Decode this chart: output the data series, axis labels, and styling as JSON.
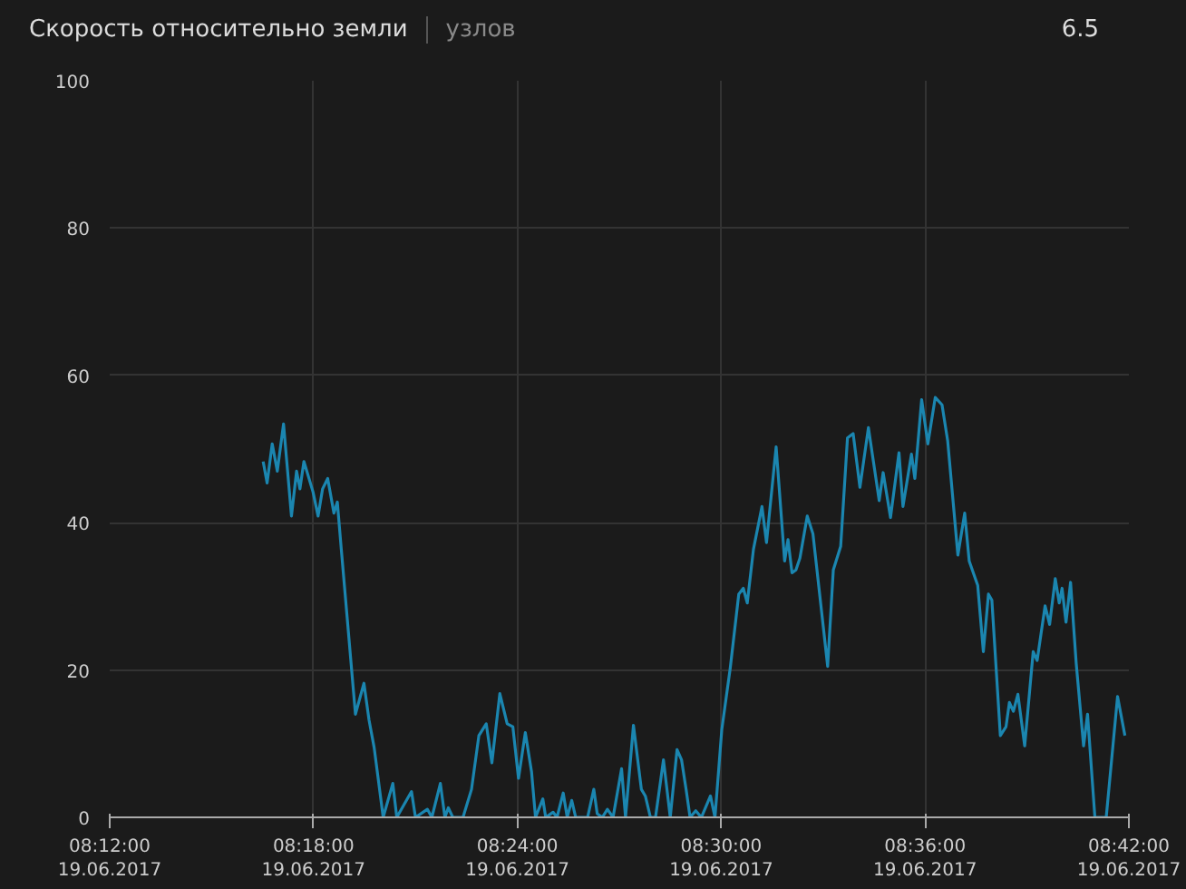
{
  "chart_data": {
    "type": "line",
    "title": "Скорость относительно земли",
    "subtitle": "узлов",
    "annotations": [
      "6.5"
    ],
    "color": "#1b86b0",
    "grid": true,
    "line_style": "solid",
    "marker": "none",
    "xlim": [
      "2017-06-19T08:12",
      "2017-06-19T08:42"
    ],
    "ylim": [
      0,
      100
    ],
    "yticks": [
      0,
      20,
      40,
      60,
      80,
      100
    ],
    "xticks": [
      {
        "value": "2017-06-19T08:12",
        "label": "08:12:00\n19.06.2017"
      },
      {
        "value": "2017-06-19T08:18",
        "label": "08:18:00\n19.06.2017"
      },
      {
        "value": "2017-06-19T08:24",
        "label": "08:24:00\n19.06.2017"
      },
      {
        "value": "2017-06-19T08:30",
        "label": "08:30:00\n19.06.2017"
      },
      {
        "value": "2017-06-19T08:36",
        "label": "08:36:00\n19.06.2017"
      },
      {
        "value": "2017-06-19T08:42",
        "label": "08:42:00\n19.06.2017"
      }
    ],
    "x": [
      "2017-06-19T08:16:31",
      "2017-06-19T08:16:38",
      "2017-06-19T08:16:47",
      "2017-06-19T08:16:56",
      "2017-06-19T08:17:07",
      "2017-06-19T08:17:21",
      "2017-06-19T08:17:30",
      "2017-06-19T08:17:36",
      "2017-06-19T08:17:43",
      "2017-06-19T08:17:59",
      "2017-06-19T08:18:08",
      "2017-06-19T08:18:16",
      "2017-06-19T08:18:25",
      "2017-06-19T08:18:36",
      "2017-06-19T08:18:42",
      "2017-06-19T08:18:49",
      "2017-06-19T08:19:14",
      "2017-06-19T08:19:29",
      "2017-06-19T08:19:38",
      "2017-06-19T08:19:47",
      "2017-06-19T08:20:03",
      "2017-06-19T08:20:20",
      "2017-06-19T08:20:27",
      "2017-06-19T08:20:53",
      "2017-06-19T08:21:00",
      "2017-06-19T08:21:21",
      "2017-06-19T08:21:29",
      "2017-06-19T08:21:44",
      "2017-06-19T08:21:52",
      "2017-06-19T08:21:58",
      "2017-06-19T08:22:06",
      "2017-06-19T08:22:24",
      "2017-06-19T08:22:39",
      "2017-06-19T08:22:52",
      "2017-06-19T08:23:05",
      "2017-06-19T08:23:15",
      "2017-06-19T08:23:29",
      "2017-06-19T08:23:42",
      "2017-06-19T08:23:52",
      "2017-06-19T08:24:02",
      "2017-06-19T08:24:14",
      "2017-06-19T08:24:25",
      "2017-06-19T08:24:32",
      "2017-06-19T08:24:45",
      "2017-06-19T08:24:50",
      "2017-06-19T08:25:03",
      "2017-06-19T08:25:10",
      "2017-06-19T08:25:21",
      "2017-06-19T08:25:28",
      "2017-06-19T08:25:36",
      "2017-06-19T08:25:43",
      "2017-06-19T08:26:04",
      "2017-06-19T08:26:15",
      "2017-06-19T08:26:21",
      "2017-06-19T08:26:30",
      "2017-06-19T08:26:39",
      "2017-06-19T08:26:49",
      "2017-06-19T08:27:04",
      "2017-06-19T08:27:11",
      "2017-06-19T08:27:25",
      "2017-06-19T08:27:39",
      "2017-06-19T08:27:46",
      "2017-06-19T08:27:55",
      "2017-06-19T08:28:04",
      "2017-06-19T08:28:18",
      "2017-06-19T08:28:30",
      "2017-06-19T08:28:42",
      "2017-06-19T08:28:50",
      "2017-06-19T08:28:58",
      "2017-06-19T08:29:05",
      "2017-06-19T08:29:15",
      "2017-06-19T08:29:25",
      "2017-06-19T08:29:41",
      "2017-06-19T08:29:49",
      "2017-06-19T08:30:01",
      "2017-06-19T08:30:16",
      "2017-06-19T08:30:31",
      "2017-06-19T08:30:39",
      "2017-06-19T08:30:46",
      "2017-06-19T08:30:57",
      "2017-06-19T08:31:12",
      "2017-06-19T08:31:20",
      "2017-06-19T08:31:37",
      "2017-06-19T08:31:52",
      "2017-06-19T08:31:58",
      "2017-06-19T08:32:05",
      "2017-06-19T08:32:12",
      "2017-06-19T08:32:19",
      "2017-06-19T08:32:32",
      "2017-06-19T08:32:42",
      "2017-06-19T08:33:08",
      "2017-06-19T08:33:18",
      "2017-06-19T08:33:31",
      "2017-06-19T08:33:43",
      "2017-06-19T08:33:53",
      "2017-06-19T08:34:05",
      "2017-06-19T08:34:20",
      "2017-06-19T08:34:39",
      "2017-06-19T08:34:46",
      "2017-06-19T08:34:59",
      "2017-06-19T08:35:14",
      "2017-06-19T08:35:21",
      "2017-06-19T08:35:36",
      "2017-06-19T08:35:42",
      "2017-06-19T08:35:54",
      "2017-06-19T08:36:05",
      "2017-06-19T08:36:18",
      "2017-06-19T08:36:30",
      "2017-06-19T08:36:40",
      "2017-06-19T08:36:58",
      "2017-06-19T08:37:10",
      "2017-06-19T08:37:18",
      "2017-06-19T08:37:33",
      "2017-06-19T08:37:43",
      "2017-06-19T08:37:52",
      "2017-06-19T08:37:58",
      "2017-06-19T08:38:13",
      "2017-06-19T08:38:23",
      "2017-06-19T08:38:29",
      "2017-06-19T08:38:36",
      "2017-06-19T08:38:44",
      "2017-06-19T08:38:56",
      "2017-06-19T08:39:11",
      "2017-06-19T08:39:18",
      "2017-06-19T08:39:32",
      "2017-06-19T08:39:40",
      "2017-06-19T08:39:50",
      "2017-06-19T08:39:57",
      "2017-06-19T08:40:02",
      "2017-06-19T08:40:09",
      "2017-06-19T08:40:17",
      "2017-06-19T08:40:27",
      "2017-06-19T08:40:40",
      "2017-06-19T08:40:47",
      "2017-06-19T08:41:00",
      "2017-06-19T08:41:20",
      "2017-06-19T08:41:40",
      "2017-06-19T08:41:53"
    ],
    "values": [
      48.3,
      45.4,
      50.7,
      47,
      53.4,
      40.9,
      47,
      44.6,
      48.3,
      44.2,
      40.9,
      44.6,
      46,
      41.3,
      42.8,
      36.4,
      14,
      18.2,
      13.2,
      9.5,
      0,
      4.6,
      0,
      3.5,
      0,
      1.1,
      0,
      4.6,
      0,
      1.3,
      0,
      0,
      3.8,
      11.1,
      12.7,
      7.4,
      16.8,
      12.7,
      12.3,
      5.3,
      11.5,
      6.2,
      0,
      2.5,
      0,
      0.7,
      0,
      3.3,
      0,
      2.3,
      0,
      0,
      3.8,
      0.5,
      0,
      1.1,
      0,
      6.6,
      0,
      12.5,
      3.8,
      2.9,
      0,
      0,
      7.8,
      0,
      9.2,
      7.8,
      3.8,
      0,
      0.9,
      0,
      2.9,
      0,
      11.9,
      20.3,
      30.3,
      31.1,
      29.1,
      36.4,
      42.2,
      37.3,
      50.3,
      34.8,
      37.7,
      33.2,
      33.6,
      35.2,
      40.9,
      38.5,
      20.5,
      33.6,
      36.8,
      51.5,
      52.1,
      44.8,
      52.9,
      43,
      46.8,
      40.7,
      49.5,
      42.2,
      49.3,
      46,
      56.7,
      50.7,
      57,
      56,
      51.1,
      35.6,
      41.3,
      34.8,
      31.5,
      22.5,
      30.3,
      29.5,
      11.1,
      12.3,
      15.6,
      14.4,
      16.7,
      9.7,
      22.5,
      21.3,
      28.7,
      26.2,
      32.4,
      29.1,
      31.1,
      26.5,
      31.9,
      20.9,
      9.7,
      14,
      0,
      0,
      16.4,
      11.1
    ]
  }
}
